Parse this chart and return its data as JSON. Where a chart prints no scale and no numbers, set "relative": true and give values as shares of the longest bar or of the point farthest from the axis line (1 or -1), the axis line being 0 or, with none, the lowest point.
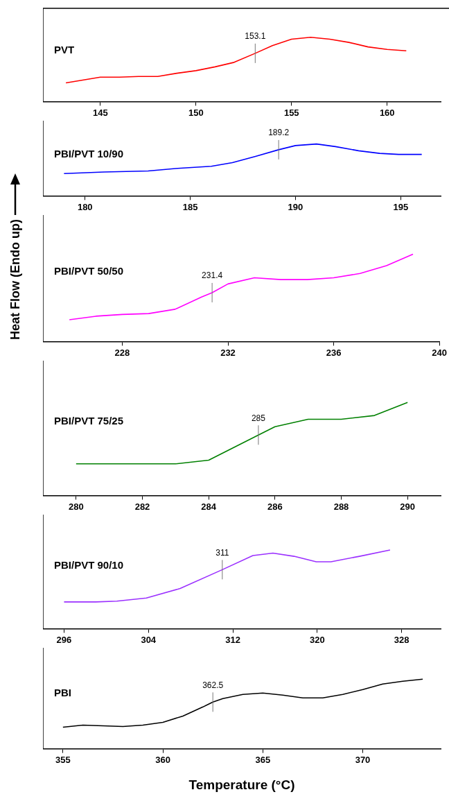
{
  "chart_data": [
    {
      "type": "line",
      "relative": true,
      "tick_labels": "x",
      "xlim": [
        142,
        162.8
      ],
      "xticks": [
        145,
        150,
        155,
        160
      ],
      "x": [
        143.2,
        145,
        146,
        147,
        148,
        149,
        150,
        151,
        152,
        153.1,
        154,
        155,
        156,
        157,
        158,
        159,
        160,
        161
      ],
      "series": [
        {
          "name": "PVT",
          "color": "#ff0000",
          "values": [
            0.29,
            0.38,
            0.38,
            0.39,
            0.39,
            0.44,
            0.48,
            0.54,
            0.61,
            0.75,
            0.87,
            0.97,
            1.0,
            0.97,
            0.92,
            0.85,
            0.81,
            0.79
          ]
        }
      ],
      "annotations": [
        {
          "text": "153.1",
          "x": 153.1,
          "y": 0.75
        }
      ]
    },
    {
      "type": "line",
      "relative": true,
      "tick_labels": "x",
      "xlim": [
        178,
        196.9
      ],
      "xticks": [
        180,
        185,
        190,
        195
      ],
      "x": [
        179,
        180.9,
        183,
        184.4,
        186,
        187,
        188.1,
        189.2,
        190,
        191,
        191.9,
        193,
        194,
        194.9,
        196
      ],
      "series": [
        {
          "name": "PBI/PVT 10/90",
          "color": "#0000ff",
          "values": [
            0.43,
            0.46,
            0.48,
            0.53,
            0.57,
            0.64,
            0.76,
            0.89,
            0.97,
            1.0,
            0.95,
            0.87,
            0.82,
            0.8,
            0.8
          ]
        }
      ],
      "annotations": [
        {
          "text": "189.2",
          "x": 189.2,
          "y": 0.89
        }
      ]
    },
    {
      "type": "line",
      "relative": true,
      "tick_labels": "x",
      "ylabel": "Heat Flow (Endo up)",
      "xlim": [
        225,
        240
      ],
      "xticks": [
        228,
        232,
        236,
        240
      ],
      "x": [
        226,
        227,
        228,
        229,
        230,
        231,
        231.4,
        232,
        233,
        234,
        235,
        236,
        237,
        238,
        239
      ],
      "series": [
        {
          "name": "PBI/PVT 50/50",
          "color": "#ff00ff",
          "values": [
            0.25,
            0.29,
            0.31,
            0.32,
            0.37,
            0.51,
            0.56,
            0.66,
            0.73,
            0.71,
            0.71,
            0.73,
            0.78,
            0.87,
            1.0
          ]
        }
      ],
      "annotations": [
        {
          "text": "231.4",
          "x": 231.4,
          "y": 0.56
        }
      ]
    },
    {
      "type": "line",
      "relative": true,
      "tick_labels": "x",
      "xlim": [
        279,
        291
      ],
      "xticks": [
        280,
        282,
        284,
        286,
        288,
        290
      ],
      "x": [
        280,
        283,
        284,
        285.5,
        286,
        287,
        288,
        289,
        290
      ],
      "series": [
        {
          "name": "PBI/PVT 75/25",
          "color": "#008000",
          "values": [
            0.34,
            0.34,
            0.38,
            0.65,
            0.74,
            0.82,
            0.82,
            0.86,
            1.0
          ]
        }
      ],
      "annotations": [
        {
          "text": "285",
          "x": 285.5,
          "y": 0.65
        }
      ]
    },
    {
      "type": "line",
      "relative": true,
      "tick_labels": "x",
      "xlim": [
        294,
        331.7
      ],
      "xticks": [
        296,
        304,
        312,
        320,
        328
      ],
      "x": [
        296,
        299,
        301,
        303.8,
        307,
        311,
        313.9,
        315.8,
        317.8,
        319.9,
        321.3,
        324,
        326.9
      ],
      "series": [
        {
          "name": "PBI/PVT 90/10",
          "color": "#9b30ff",
          "values": [
            0.34,
            0.34,
            0.35,
            0.39,
            0.51,
            0.75,
            0.93,
            0.96,
            0.92,
            0.85,
            0.85,
            0.92,
            1.0
          ]
        }
      ],
      "annotations": [
        {
          "text": "311",
          "x": 311,
          "y": 0.75
        }
      ]
    },
    {
      "type": "line",
      "relative": true,
      "tick_labels": "x",
      "xlabel": "Temperature (°C)",
      "xlim": [
        354,
        373.9
      ],
      "xticks": [
        355,
        360,
        365,
        370
      ],
      "x": [
        355,
        356,
        358,
        359,
        360,
        361,
        362,
        362.5,
        363,
        364,
        365,
        366,
        367,
        368,
        369,
        370,
        371,
        372,
        373
      ],
      "series": [
        {
          "name": "PBI",
          "color": "#000000",
          "values": [
            0.31,
            0.34,
            0.32,
            0.34,
            0.38,
            0.47,
            0.6,
            0.67,
            0.72,
            0.78,
            0.8,
            0.77,
            0.73,
            0.73,
            0.78,
            0.85,
            0.93,
            0.97,
            1.0
          ]
        }
      ],
      "annotations": [
        {
          "text": "362.5",
          "x": 362.5,
          "y": 0.67
        }
      ]
    }
  ]
}
